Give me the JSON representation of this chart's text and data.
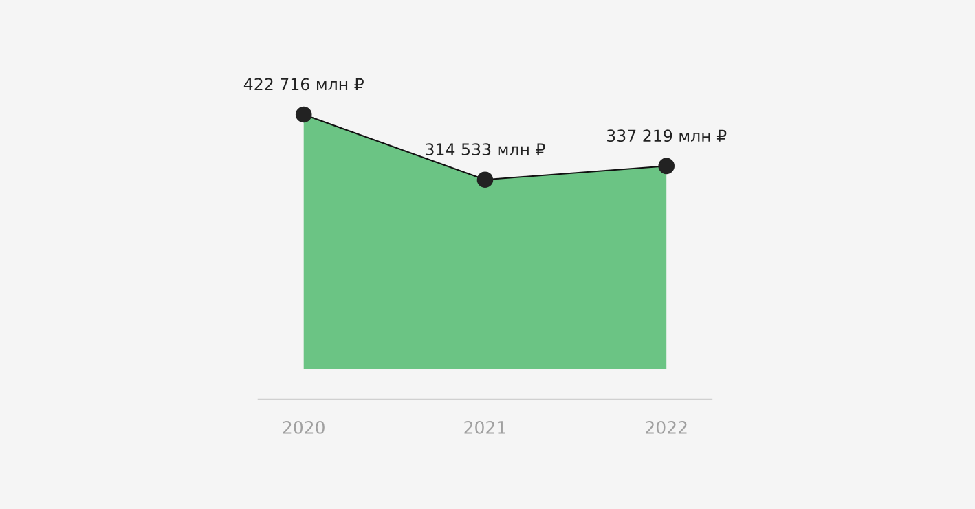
{
  "chart_data": {
    "type": "area",
    "categories": [
      "2020",
      "2021",
      "2022"
    ],
    "series": [
      {
        "color": "#3cb35e",
        "values": [
          422716,
          314533,
          337219
        ],
        "value_labels": [
          "422 716 млн ₽",
          "314 533 млн ₽",
          "337 219 млн ₽"
        ]
      }
    ],
    "marker": "circle",
    "line_style": "solid",
    "grid": false,
    "legend": false,
    "tick_labels": "x"
  }
}
